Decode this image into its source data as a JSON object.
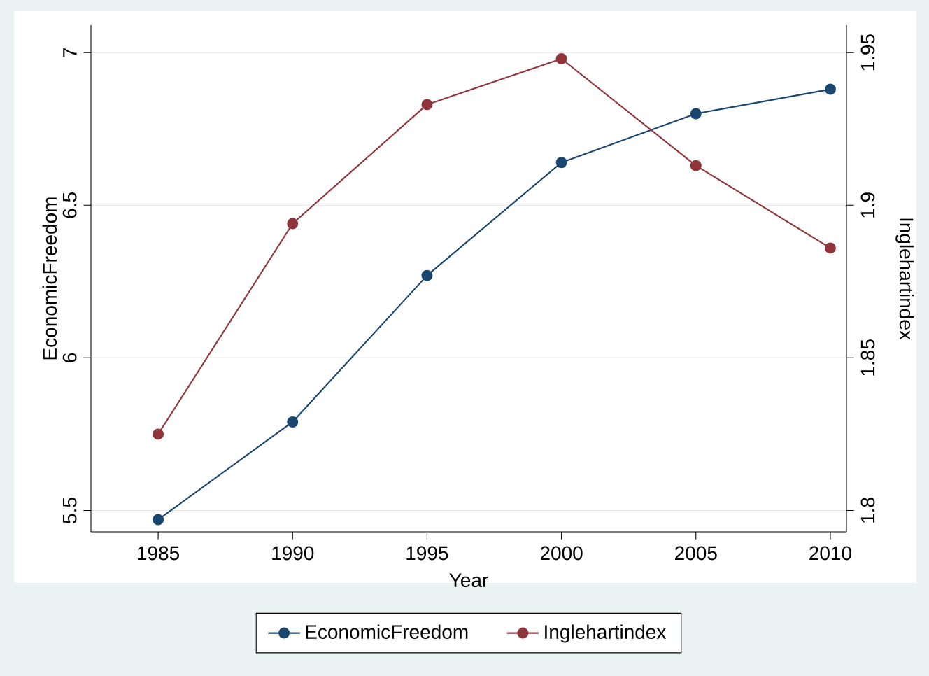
{
  "chart_data": {
    "type": "line",
    "xlabel": "Year",
    "ylabel": "EconomicFreedom",
    "y2label": "Inglehartindex",
    "x": [
      1985,
      1990,
      1995,
      2000,
      2005,
      2010
    ],
    "series": [
      {
        "name": "EconomicFreedom",
        "color": "#1a476f",
        "values": [
          5.47,
          5.79,
          6.27,
          6.64,
          6.8,
          6.88
        ]
      },
      {
        "name": "Inglehartindex",
        "color": "#90353b",
        "axis": "y2",
        "values": [
          1.825,
          1.894,
          1.933,
          1.948,
          1.913,
          1.886
        ]
      }
    ],
    "xlim": [
      1982.5,
      2010.6
    ],
    "xticks": [
      1985,
      1990,
      1995,
      2000,
      2005,
      2010
    ],
    "ylim": [
      5.43,
      7.09
    ],
    "yticks": [
      5.5,
      6,
      6.5,
      7
    ],
    "y2lim": [
      1.793,
      1.959
    ],
    "y2ticks": [
      1.8,
      1.85,
      1.9,
      1.95
    ],
    "grid": "y",
    "legend": "bottom",
    "marker": "circle",
    "line_style": "solid"
  }
}
